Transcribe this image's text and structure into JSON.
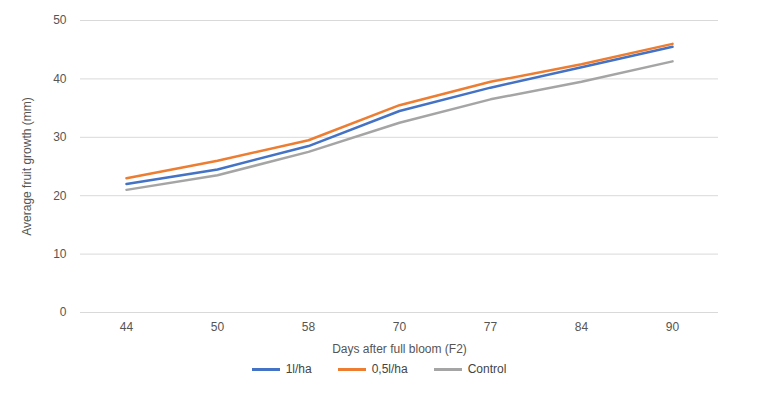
{
  "chart_data": {
    "type": "line",
    "x_label": "Days after full bloom (F2)",
    "y_label": "Average fruit growth (mm)",
    "categories": [
      "44",
      "50",
      "58",
      "70",
      "77",
      "84",
      "90"
    ],
    "series": [
      {
        "name": "1l/ha",
        "color": "#4472c4",
        "values": [
          22,
          24.5,
          28.5,
          34.5,
          38.5,
          42,
          45.5
        ]
      },
      {
        "name": "0,5l/ha",
        "color": "#ed7d31",
        "values": [
          23,
          26,
          29.5,
          35.5,
          39.5,
          42.5,
          46
        ]
      },
      {
        "name": "Control",
        "color": "#a5a5a5",
        "values": [
          21,
          23.5,
          27.5,
          32.5,
          36.5,
          39.5,
          43
        ]
      }
    ],
    "ylim": [
      0,
      50
    ],
    "yticks": [
      0,
      10,
      20,
      30,
      40,
      50
    ],
    "grid": true,
    "legend": "bottom"
  }
}
